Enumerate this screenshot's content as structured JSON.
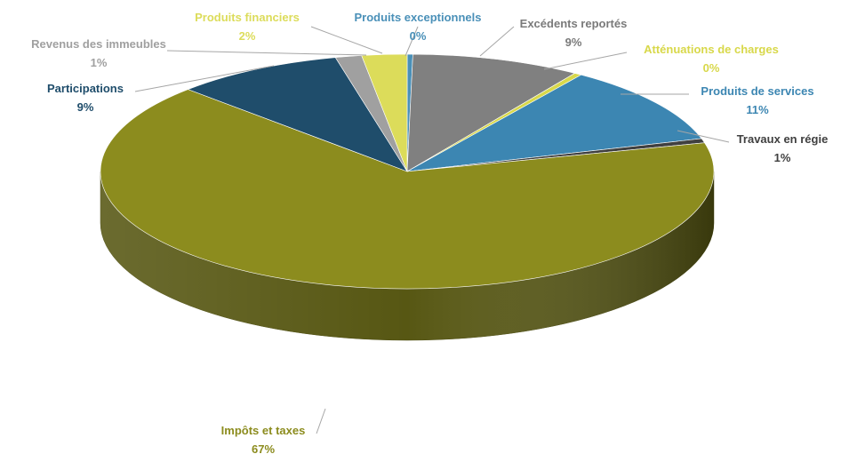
{
  "chart_data": {
    "type": "pie",
    "style": "3d-pie",
    "title": "",
    "legend": "none",
    "slices": [
      {
        "label": "Produits exceptionnels",
        "value_label": "0%",
        "value": 0.3,
        "color": "#4A90B8"
      },
      {
        "label": "Excédents reportés",
        "value_label": "9%",
        "value": 9,
        "color": "#808080"
      },
      {
        "label": "Atténuations de charges",
        "value_label": "0%",
        "value": 0.4,
        "color": "#D8D84A"
      },
      {
        "label": "Produits de services",
        "value_label": "11%",
        "value": 11,
        "color": "#3C86B2"
      },
      {
        "label": "Travaux en régie",
        "value_label": "1%",
        "value": 0.6,
        "color": "#404040"
      },
      {
        "label": "Impôts et taxes",
        "value_label": "67%",
        "value": 67,
        "color": "#8C8C1E"
      },
      {
        "label": "Participations",
        "value_label": "9%",
        "value": 9,
        "color": "#1F4D6B"
      },
      {
        "label": "Revenus des immeubles",
        "value_label": "1%",
        "value": 1.4,
        "color": "#A0A0A0"
      },
      {
        "label": "Produits financiers",
        "value_label": "2%",
        "value": 2.4,
        "color": "#DCDC5A"
      }
    ],
    "label_colors": [
      "#4A90B8",
      "#7A7A7A",
      "#D8D84A",
      "#3C86B2",
      "#404040",
      "#8C8C1E",
      "#1F4D6B",
      "#A0A0A0",
      "#DCDC5A"
    ]
  }
}
